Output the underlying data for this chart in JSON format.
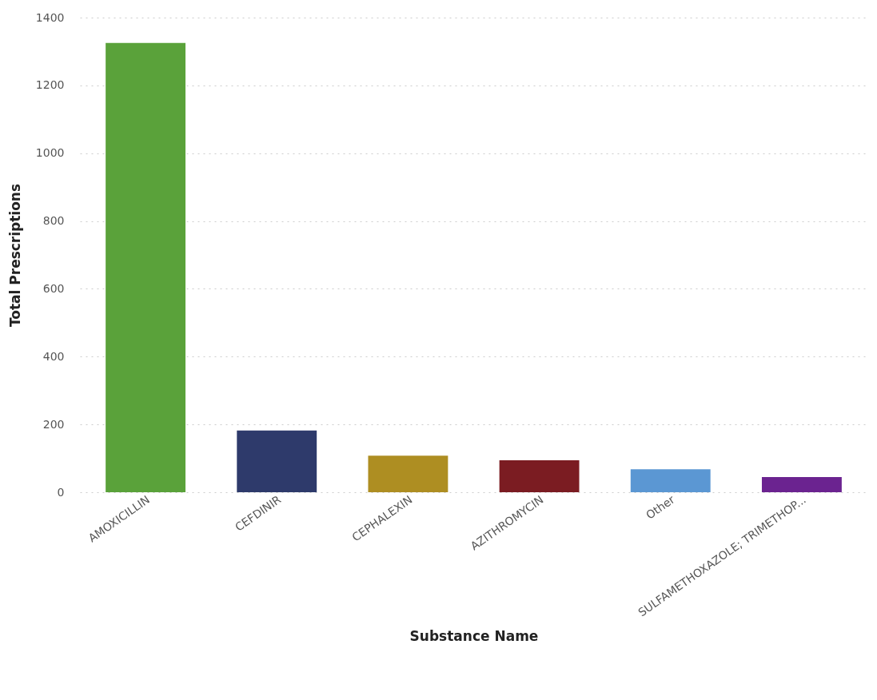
{
  "chart_data": {
    "type": "bar",
    "xlabel": "Substance Name",
    "ylabel": "Total Prescriptions",
    "categories": [
      "AMOXICILLIN",
      "CEFDINIR",
      "CEPHALEXIN",
      "AZITHROMYCIN",
      "Other",
      "SULFAMETHOXAZOLE; TRIMETHOP..."
    ],
    "values": [
      1325,
      182,
      108,
      94,
      68,
      45
    ],
    "colors": [
      "#5aa23a",
      "#2e3a6b",
      "#ae8e22",
      "#7b1c22",
      "#5b97d3",
      "#6b2390"
    ],
    "ylim": [
      0,
      1400
    ],
    "yticks": [
      0,
      200,
      400,
      600,
      800,
      1000,
      1200,
      1400
    ],
    "grid": "y",
    "legend": false
  }
}
